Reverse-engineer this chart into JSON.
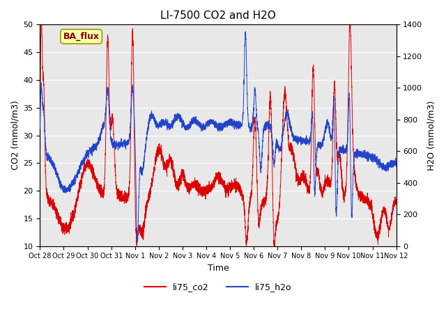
{
  "title": "LI-7500 CO2 and H2O",
  "xlabel": "Time",
  "ylabel_left": "CO2 (mmol/m3)",
  "ylabel_right": "H2O (mmol/m3)",
  "ylim_left": [
    10,
    50
  ],
  "ylim_right": [
    0,
    1400
  ],
  "background_color": "#e8e8e8",
  "co2_color": "#dd0000",
  "h2o_color": "#2244cc",
  "legend_labels": [
    "li75_co2",
    "li75_h2o"
  ],
  "annotation_text": "BA_flux",
  "annotation_bg": "#ffffaa",
  "annotation_border": "#999900",
  "xtick_labels": [
    "Oct 28",
    "Oct 29",
    "Oct 30",
    "Oct 31",
    "Nov 1",
    "Nov 2",
    "Nov 3",
    "Nov 4",
    "Nov 5",
    "Nov 6",
    "Nov 7",
    "Nov 8",
    "Nov 9",
    "Nov 10",
    "Nov 11",
    "Nov 12"
  ],
  "yticks_left": [
    10,
    15,
    20,
    25,
    30,
    35,
    40,
    45,
    50
  ],
  "yticks_right": [
    0,
    200,
    400,
    600,
    800,
    1000,
    1200,
    1400
  ]
}
